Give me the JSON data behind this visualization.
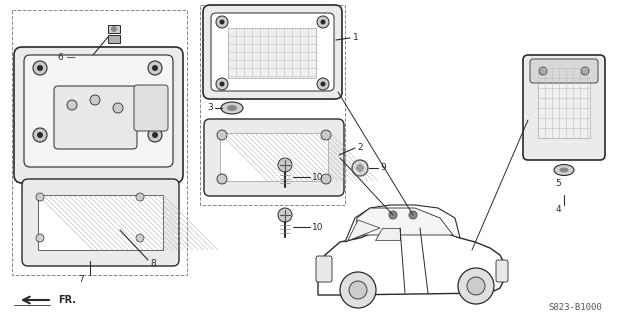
{
  "bg_color": "#ffffff",
  "line_color": "#2a2a2a",
  "part_number": "S823-B1000",
  "gray_fill": "#d8d8d8",
  "light_gray": "#ebebeb",
  "mid_gray": "#c0c0c0"
}
